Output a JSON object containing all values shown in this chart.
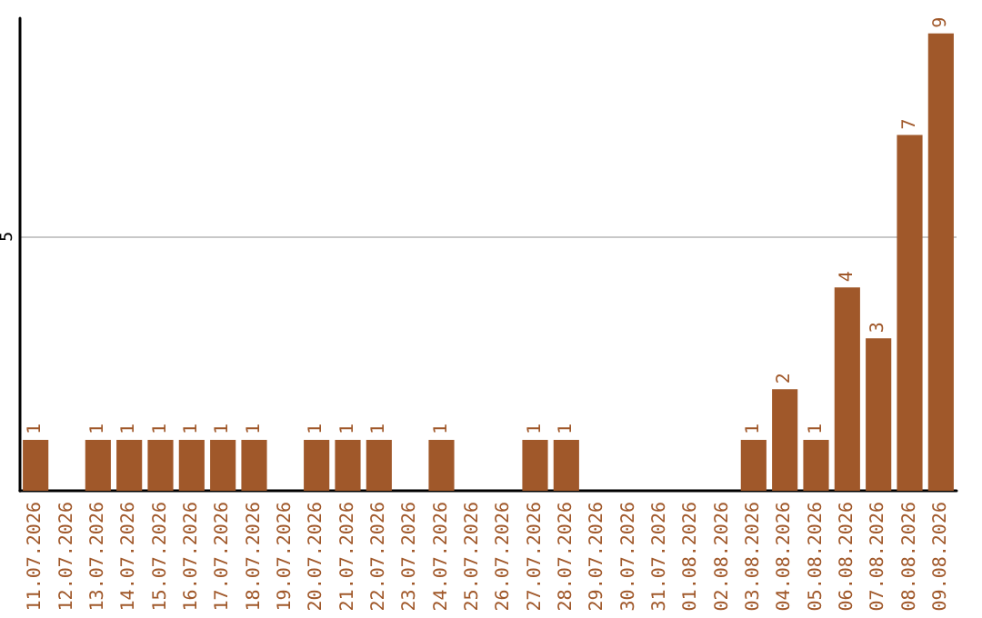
{
  "chart_data": {
    "type": "bar",
    "categories": [
      "11.07.2026",
      "12.07.2026",
      "13.07.2026",
      "14.07.2026",
      "15.07.2026",
      "16.07.2026",
      "17.07.2026",
      "18.07.2026",
      "19.07.2026",
      "20.07.2026",
      "21.07.2026",
      "22.07.2026",
      "23.07.2026",
      "24.07.2026",
      "25.07.2026",
      "26.07.2026",
      "27.07.2026",
      "28.07.2026",
      "29.07.2026",
      "30.07.2026",
      "31.07.2026",
      "01.08.2026",
      "02.08.2026",
      "03.08.2026",
      "04.08.2026",
      "05.08.2026",
      "06.08.2026",
      "07.08.2026",
      "08.08.2026",
      "09.08.2026"
    ],
    "values": [
      1,
      0,
      1,
      1,
      1,
      1,
      1,
      1,
      0,
      1,
      1,
      1,
      0,
      1,
      0,
      0,
      1,
      1,
      0,
      0,
      0,
      0,
      0,
      1,
      2,
      1,
      4,
      3,
      7,
      9
    ],
    "value_labels": [
      "1",
      null,
      "1",
      "1",
      "1",
      "1",
      "1",
      "1",
      null,
      "1",
      "1",
      "1",
      null,
      "1",
      null,
      null,
      "1",
      "1",
      null,
      null,
      null,
      null,
      null,
      "1",
      "2",
      "1",
      "4",
      "3",
      "7",
      "9"
    ],
    "color": "#a0582a",
    "ylim": [
      0,
      9.3
    ],
    "yticks": [
      5
    ],
    "grid": "y"
  }
}
